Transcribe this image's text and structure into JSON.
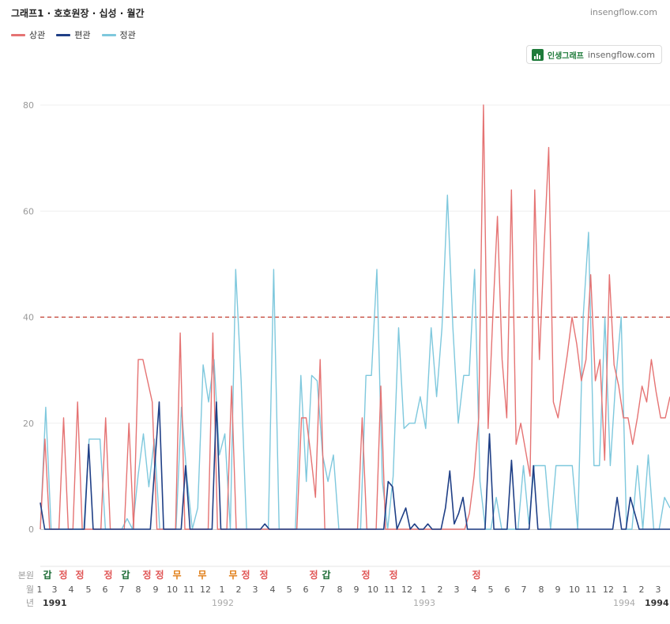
{
  "header": {
    "title": "그래프1 · 호호원장 · 십성 · 월간",
    "site": "insengflow.com"
  },
  "badge": {
    "name": "인생그래프",
    "site": "insengflow.com"
  },
  "colors": {
    "sang": "#e57373",
    "pyeon": "#1f3f86",
    "jeong": "#7ec8dd",
    "ref": "#c0392b",
    "gap": "#1b6b34",
    "jeongLabel": "#e05555",
    "mu": "#e07b12"
  },
  "chart_data": {
    "type": "line",
    "x_unit": "month",
    "x_start": "1991-01",
    "y_ticks": [
      0,
      20,
      40,
      60,
      80
    ],
    "ylim": [
      0,
      80
    ],
    "ref_line": 40,
    "series": [
      {
        "name": "상관",
        "values": [
          0,
          17,
          0,
          0,
          0,
          21,
          0,
          0,
          24,
          0,
          0,
          0,
          0,
          0,
          21,
          0,
          0,
          0,
          0,
          20,
          0,
          32,
          32,
          28,
          24,
          0,
          0,
          0,
          0,
          0,
          37,
          0,
          0,
          0,
          0,
          0,
          0,
          37,
          0,
          0,
          0,
          27,
          0,
          0,
          0,
          0,
          0,
          0,
          0,
          0,
          0,
          0,
          0,
          0,
          0,
          0,
          21,
          21,
          14,
          6,
          32,
          0,
          0,
          0,
          0,
          0,
          0,
          0,
          0,
          21,
          0,
          0,
          0,
          27,
          0,
          0,
          0,
          0,
          0,
          0,
          0,
          0,
          0,
          0,
          0,
          0,
          0,
          0,
          0,
          0,
          0,
          0,
          3,
          10,
          21,
          80,
          19,
          40,
          59,
          32,
          21,
          64,
          16,
          20,
          15,
          10,
          64,
          32,
          53,
          72,
          24,
          21,
          27,
          33,
          40,
          35,
          28,
          32,
          48,
          28,
          32,
          13,
          48,
          31,
          27,
          21,
          21,
          16,
          21,
          27,
          24,
          32,
          26,
          21,
          21,
          25
        ]
      },
      {
        "name": "편관",
        "values": [
          5,
          0,
          0,
          0,
          0,
          0,
          0,
          0,
          0,
          0,
          0,
          16,
          0,
          0,
          0,
          0,
          0,
          0,
          0,
          0,
          0,
          0,
          0,
          0,
          0,
          0,
          12,
          24,
          0,
          0,
          0,
          0,
          0,
          12,
          0,
          0,
          0,
          0,
          0,
          0,
          24,
          0,
          0,
          0,
          0,
          0,
          0,
          0,
          0,
          0,
          0,
          1,
          0,
          0,
          0,
          0,
          0,
          0,
          0,
          0,
          0,
          0,
          0,
          0,
          0,
          0,
          0,
          0,
          0,
          0,
          0,
          0,
          0,
          0,
          0,
          0,
          0,
          0,
          0,
          9,
          8,
          0,
          2,
          4,
          0,
          1,
          0,
          0,
          1,
          0,
          0,
          0,
          4,
          11,
          1,
          3,
          6,
          0,
          0,
          0,
          0,
          0,
          18,
          0,
          0,
          0,
          0,
          13,
          0,
          0,
          0,
          0,
          12,
          0,
          0,
          0,
          0,
          0,
          0,
          0,
          0,
          0,
          0,
          0,
          0,
          0,
          0,
          0,
          0,
          0,
          0,
          6,
          0,
          0,
          6,
          3,
          0,
          0,
          0,
          0,
          0,
          0,
          0,
          0
        ]
      },
      {
        "name": "정관",
        "values": [
          0,
          23,
          0,
          0,
          0,
          0,
          0,
          0,
          0,
          17,
          17,
          17,
          0,
          0,
          0,
          0,
          2,
          0,
          10,
          18,
          8,
          17,
          0,
          0,
          0,
          0,
          23,
          10,
          0,
          4,
          31,
          24,
          32,
          14,
          18,
          0,
          49,
          28,
          0,
          0,
          0,
          0,
          0,
          49,
          0,
          0,
          0,
          0,
          29,
          9,
          29,
          28,
          14,
          9,
          14,
          0,
          0,
          0,
          0,
          0,
          29,
          29,
          49,
          9,
          0,
          10,
          38,
          19,
          20,
          20,
          25,
          19,
          38,
          25,
          38,
          63,
          38,
          20,
          29,
          29,
          49,
          9,
          0,
          0,
          6,
          0,
          0,
          0,
          0,
          12,
          1,
          12,
          12,
          12,
          0,
          12,
          12,
          12,
          12,
          0,
          40,
          56,
          12,
          12,
          40,
          12,
          28,
          40,
          0,
          0,
          12,
          0,
          14,
          0,
          0,
          6,
          4
        ]
      }
    ]
  },
  "axis": {
    "row_labels": [
      "본원",
      "월",
      "년"
    ],
    "month_labels": [
      "1",
      "3",
      "4",
      "5",
      "6",
      "7",
      "8",
      "9",
      "10",
      "11",
      "12",
      "1",
      "2",
      "3",
      "4",
      "5",
      "6",
      "7",
      "8",
      "9",
      "10",
      "11",
      "12",
      "1",
      "2",
      "3",
      "4",
      "5",
      "6",
      "7",
      "8",
      "9",
      "10",
      "11",
      "12",
      "1",
      "2",
      "3"
    ],
    "year_labels": [
      "1991",
      "1992",
      "1993",
      "1994",
      "1994"
    ],
    "markers": [
      "갑",
      "정",
      "정",
      "정",
      "갑",
      "정",
      "정",
      "무",
      "무",
      "무",
      "정",
      "정",
      "정",
      "갑",
      "정",
      "정",
      "정"
    ]
  }
}
